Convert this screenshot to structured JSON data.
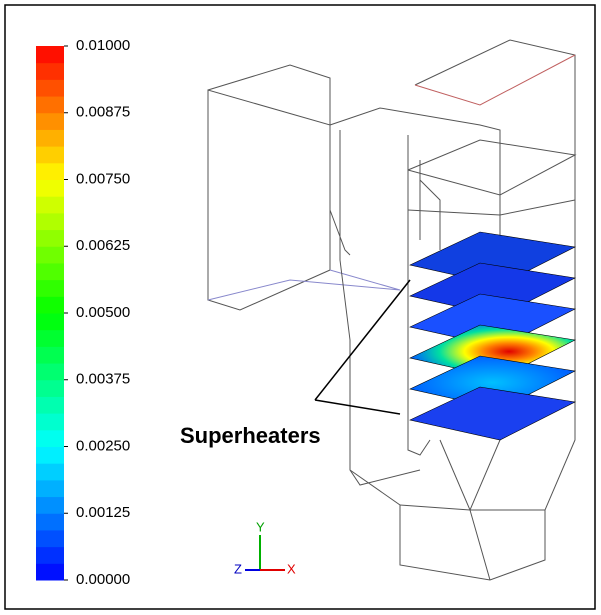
{
  "colorbar": {
    "range": [
      0,
      0.01
    ],
    "ticks": [
      {
        "value": 0.01,
        "label": "0.01000"
      },
      {
        "value": 0.00875,
        "label": "0.00875"
      },
      {
        "value": 0.0075,
        "label": "0.00750"
      },
      {
        "value": 0.00625,
        "label": "0.00625"
      },
      {
        "value": 0.005,
        "label": "0.00500"
      },
      {
        "value": 0.00375,
        "label": "0.00375"
      },
      {
        "value": 0.0025,
        "label": "0.00250"
      },
      {
        "value": 0.00125,
        "label": "0.00125"
      },
      {
        "value": 0,
        "label": "0.00000"
      }
    ],
    "colormap": [
      "#0000ff",
      "#0080ff",
      "#00ffff",
      "#00ff80",
      "#00ff00",
      "#80ff00",
      "#ffff00",
      "#ff8000",
      "#ff0000"
    ]
  },
  "annotation": "Superheaters",
  "axes": {
    "x": "X",
    "y": "Y",
    "z": "Z"
  }
}
